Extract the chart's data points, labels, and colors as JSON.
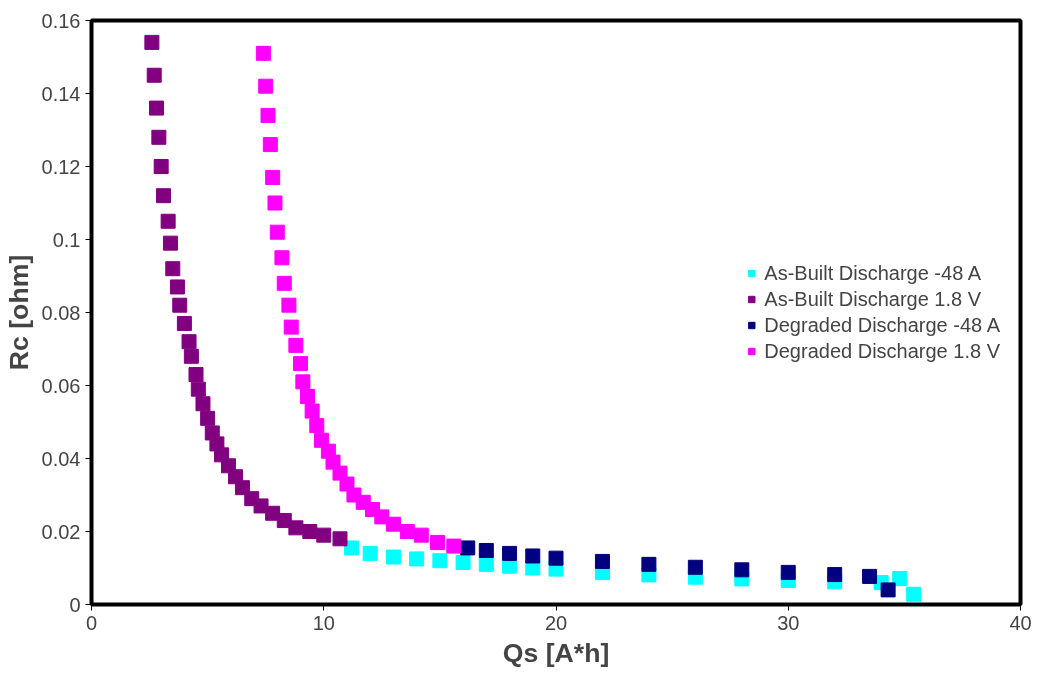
{
  "chart_data": {
    "type": "scatter",
    "xlabel": "Qs [A*h]",
    "ylabel": "Rc [ohm]",
    "xlim": [
      0,
      40
    ],
    "ylim": [
      0,
      0.16
    ],
    "xticks": [
      0,
      10,
      20,
      30,
      40
    ],
    "yticks": [
      0,
      0.02,
      0.04,
      0.06,
      0.08,
      0.1,
      0.12,
      0.14,
      0.16
    ],
    "grid": false,
    "legend": "right",
    "marker": "square",
    "series": [
      {
        "name": "As-Built Discharge -48 A",
        "color": "#00ffff",
        "x": [
          11.2,
          12,
          13,
          14,
          15,
          16,
          17,
          18,
          19,
          20,
          22,
          24,
          26,
          28,
          30,
          32,
          34,
          34.8,
          35.4
        ],
        "values": [
          0.0155,
          0.014,
          0.013,
          0.0125,
          0.012,
          0.0115,
          0.011,
          0.0105,
          0.01,
          0.0097,
          0.0088,
          0.0081,
          0.0075,
          0.007,
          0.0066,
          0.0062,
          0.006,
          0.0071,
          0.0028
        ]
      },
      {
        "name": "As-Built Discharge 1.8 V",
        "color": "#800080",
        "x": [
          2.6,
          2.7,
          2.8,
          2.9,
          3.0,
          3.1,
          3.3,
          3.4,
          3.5,
          3.7,
          3.8,
          4.0,
          4.2,
          4.3,
          4.5,
          4.6,
          4.8,
          5.0,
          5.2,
          5.4,
          5.6,
          5.9,
          6.2,
          6.5,
          6.9,
          7.3,
          7.8,
          8.3,
          8.8,
          9.4,
          10.0,
          10.7
        ],
        "values": [
          0.154,
          0.145,
          0.136,
          0.128,
          0.12,
          0.112,
          0.105,
          0.099,
          0.092,
          0.087,
          0.082,
          0.077,
          0.072,
          0.068,
          0.063,
          0.059,
          0.055,
          0.051,
          0.047,
          0.044,
          0.041,
          0.038,
          0.035,
          0.032,
          0.029,
          0.027,
          0.025,
          0.023,
          0.021,
          0.02,
          0.019,
          0.018
        ]
      },
      {
        "name": "Degraded Discharge -48 A",
        "color": "#000080",
        "x": [
          16.2,
          17,
          18,
          19,
          20,
          22,
          24,
          26,
          28,
          30,
          32,
          33.5,
          34.3
        ],
        "values": [
          0.0155,
          0.0148,
          0.014,
          0.0133,
          0.0127,
          0.0118,
          0.011,
          0.0102,
          0.0095,
          0.0088,
          0.0082,
          0.0077,
          0.004
        ]
      },
      {
        "name": "Degraded Discharge 1.8 V",
        "color": "#ff00ff",
        "x": [
          7.4,
          7.5,
          7.6,
          7.7,
          7.8,
          7.9,
          8.0,
          8.2,
          8.3,
          8.5,
          8.6,
          8.8,
          9.0,
          9.1,
          9.3,
          9.5,
          9.7,
          9.9,
          10.2,
          10.4,
          10.7,
          11.0,
          11.3,
          11.7,
          12.1,
          12.5,
          13.0,
          13.6,
          14.2,
          14.9,
          15.6
        ],
        "values": [
          0.151,
          0.142,
          0.134,
          0.126,
          0.117,
          0.11,
          0.102,
          0.095,
          0.088,
          0.082,
          0.076,
          0.071,
          0.066,
          0.061,
          0.057,
          0.053,
          0.049,
          0.045,
          0.042,
          0.039,
          0.036,
          0.033,
          0.03,
          0.028,
          0.026,
          0.024,
          0.022,
          0.02,
          0.019,
          0.017,
          0.016
        ]
      }
    ]
  }
}
